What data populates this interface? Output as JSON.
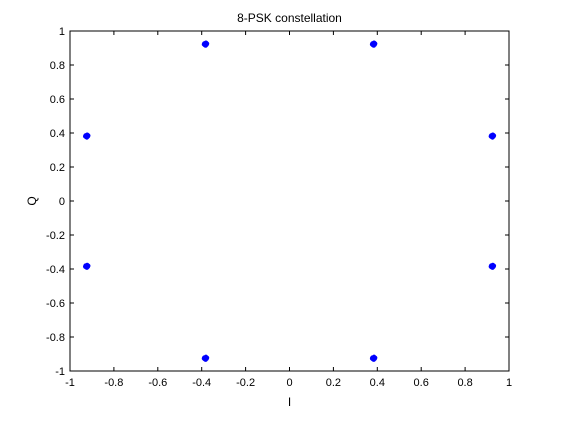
{
  "chart_data": {
    "type": "scatter",
    "title": "8-PSK constellation",
    "xlabel": "I",
    "ylabel": "Q",
    "xlim": [
      -1,
      1
    ],
    "ylim": [
      -1,
      1
    ],
    "xticks": [
      "-1",
      "-0.8",
      "-0.6",
      "-0.4",
      "-0.2",
      "0",
      "0.2",
      "0.4",
      "0.6",
      "0.8",
      "1"
    ],
    "yticks": [
      "-1",
      "-0.8",
      "-0.6",
      "-0.4",
      "-0.2",
      "0",
      "0.2",
      "0.4",
      "0.6",
      "0.8",
      "1"
    ],
    "grid": false,
    "series": [
      {
        "color": "#0000ff",
        "points": [
          [
            0.924,
            0.383
          ],
          [
            0.383,
            0.924
          ],
          [
            -0.383,
            0.924
          ],
          [
            -0.924,
            0.383
          ],
          [
            -0.924,
            -0.383
          ],
          [
            -0.383,
            -0.924
          ],
          [
            0.383,
            -0.924
          ],
          [
            0.924,
            -0.383
          ]
        ]
      }
    ]
  }
}
